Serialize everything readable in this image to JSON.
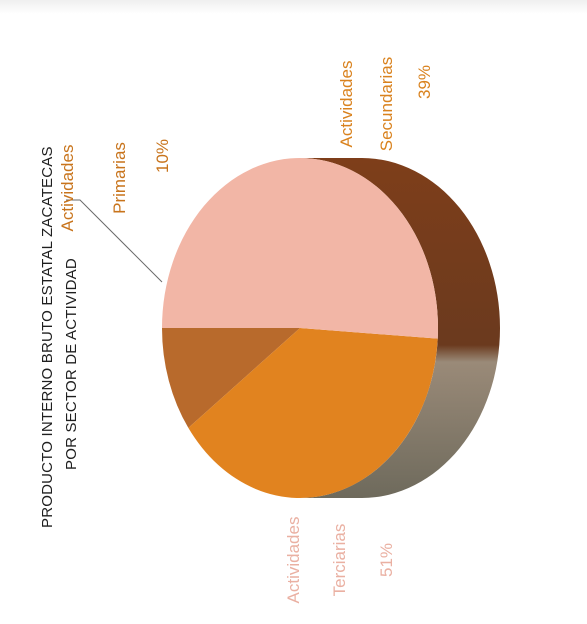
{
  "chart_data": {
    "type": "pie",
    "title_lines": [
      "PRODUCTO INTERNO BRUTO ESTATAL ZACATECAS",
      "POR SECTOR DE ACTIVIDAD"
    ],
    "categories": [
      "Actividades Primarias",
      "Actividades Secundarias",
      "Actividades Terciarias"
    ],
    "values": [
      10,
      39,
      51
    ],
    "slices": [
      {
        "label_lines": [
          "Actividades",
          "Primarias",
          "10%"
        ],
        "value": 10,
        "color": "#b86a2c",
        "side_color": "#7a4220",
        "label_color": "#c8741c"
      },
      {
        "label_lines": [
          "Actividades",
          "Secundarias",
          "39%"
        ],
        "value": 39,
        "color": "#e1831f",
        "side_color": "#7e3e1a",
        "label_color": "#d9821e"
      },
      {
        "label_lines": [
          "Actividades",
          "Terciarias",
          "51%"
        ],
        "value": 51,
        "color": "#f2b6a6",
        "side_color": "#9a8a78",
        "label_color": "#eab0a2"
      }
    ],
    "style": "3d-rotated"
  }
}
